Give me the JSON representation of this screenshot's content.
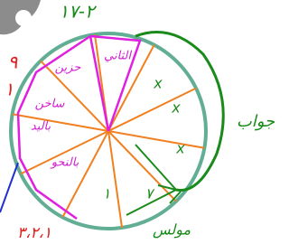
{
  "title": "٢-١٧",
  "side_labels": [
    "٩",
    "١",
    "٣،٢،١",
    "جواب",
    "مولس"
  ],
  "sector_labels": [
    "الثاني",
    "حزين",
    "باليد",
    "ساخن",
    "بالنحو"
  ],
  "marks": [
    "x",
    "x",
    "x",
    "١",
    "٧"
  ]
}
